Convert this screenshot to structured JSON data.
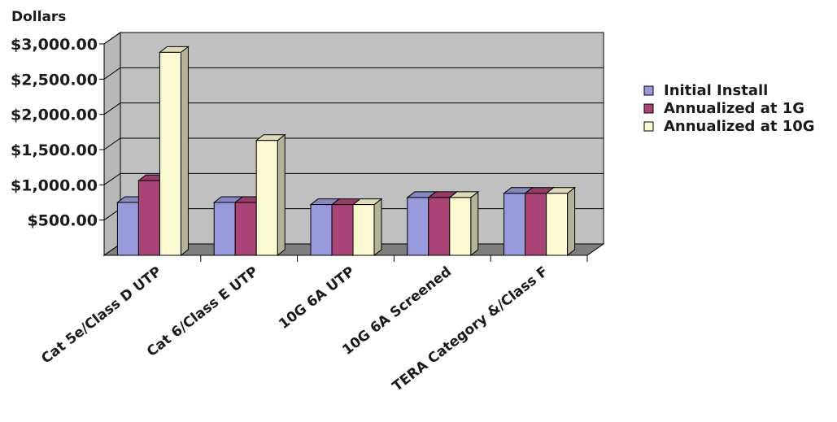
{
  "chart_data": {
    "type": "bar",
    "ylabel": "Dollars",
    "categories": [
      "Cat 5e/Class D UTP",
      "Cat 6/Class E UTP",
      "10G 6A UTP",
      "10G 6A Screened",
      "TERA Category &/Class F"
    ],
    "series": [
      {
        "name": "Initial Install",
        "values": [
          750,
          750,
          720,
          820,
          880
        ]
      },
      {
        "name": "Annualized at 1G",
        "values": [
          1060,
          750,
          720,
          820,
          880
        ]
      },
      {
        "name": "Annualized at 10G",
        "values": [
          2880,
          1630,
          720,
          820,
          880
        ]
      }
    ],
    "ylim": [
      0,
      3000
    ],
    "yticks": [
      500,
      1000,
      1500,
      2000,
      2500,
      3000
    ],
    "ytick_labels": [
      "$500.00",
      "$1,000.00",
      "$1,500.00",
      "$2,000.00",
      "$2,500.00",
      "$3,000.00"
    ],
    "grid": true,
    "legend_position": "right",
    "colors": {
      "series": [
        "#9999dd",
        "#aa4477",
        "#fbf9d2"
      ],
      "back_wall": "#c0c0c0",
      "floor": "#7f7f7f"
    }
  }
}
